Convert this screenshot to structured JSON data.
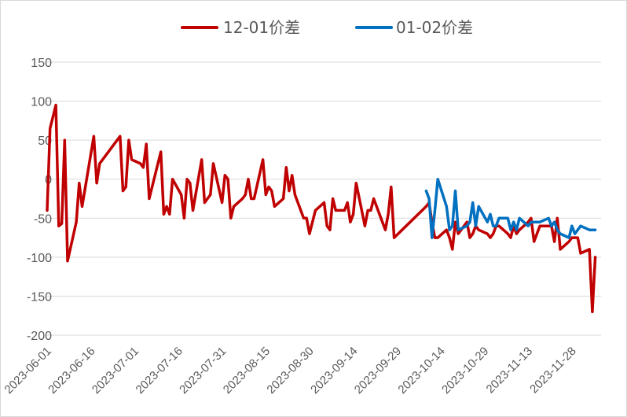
{
  "chart_data": {
    "type": "line",
    "title": "",
    "xlabel": "",
    "ylabel": "",
    "ylim": [
      -200,
      150
    ],
    "yticks": [
      150,
      100,
      50,
      0,
      -50,
      -100,
      -150,
      -200
    ],
    "xlim": [
      "2023-06-01",
      "2023-12-08"
    ],
    "xticks": [
      "2023-06-01",
      "2023-06-16",
      "2023-07-01",
      "2023-07-16",
      "2023-07-31",
      "2023-08-15",
      "2023-08-30",
      "2023-09-14",
      "2023-09-29",
      "2023-10-14",
      "2023-10-29",
      "2023-11-13",
      "2023-11-28"
    ],
    "grid": "horizontal",
    "legend_position": "top",
    "series": [
      {
        "name": "12-01价差",
        "color": "#c00000",
        "points": [
          [
            "2023-06-01",
            -40
          ],
          [
            "2023-06-02",
            65
          ],
          [
            "2023-06-04",
            95
          ],
          [
            "2023-06-05",
            -60
          ],
          [
            "2023-06-06",
            -57
          ],
          [
            "2023-06-07",
            50
          ],
          [
            "2023-06-08",
            -105
          ],
          [
            "2023-06-11",
            -55
          ],
          [
            "2023-06-12",
            -5
          ],
          [
            "2023-06-13",
            -35
          ],
          [
            "2023-06-17",
            55
          ],
          [
            "2023-06-18",
            -5
          ],
          [
            "2023-06-19",
            20
          ],
          [
            "2023-06-26",
            55
          ],
          [
            "2023-06-27",
            -15
          ],
          [
            "2023-06-28",
            -10
          ],
          [
            "2023-06-29",
            50
          ],
          [
            "2023-06-30",
            25
          ],
          [
            "2023-07-03",
            20
          ],
          [
            "2023-07-04",
            15
          ],
          [
            "2023-07-05",
            45
          ],
          [
            "2023-07-06",
            -25
          ],
          [
            "2023-07-10",
            35
          ],
          [
            "2023-07-11",
            -45
          ],
          [
            "2023-07-12",
            -35
          ],
          [
            "2023-07-13",
            -45
          ],
          [
            "2023-07-14",
            0
          ],
          [
            "2023-07-17",
            -20
          ],
          [
            "2023-07-18",
            -50
          ],
          [
            "2023-07-19",
            0
          ],
          [
            "2023-07-20",
            -5
          ],
          [
            "2023-07-21",
            -40
          ],
          [
            "2023-07-24",
            25
          ],
          [
            "2023-07-25",
            -30
          ],
          [
            "2023-07-26",
            -25
          ],
          [
            "2023-07-27",
            -20
          ],
          [
            "2023-07-28",
            20
          ],
          [
            "2023-07-31",
            -30
          ],
          [
            "2023-08-01",
            5
          ],
          [
            "2023-08-02",
            0
          ],
          [
            "2023-08-03",
            -50
          ],
          [
            "2023-08-04",
            -35
          ],
          [
            "2023-08-07",
            -25
          ],
          [
            "2023-08-08",
            -20
          ],
          [
            "2023-08-09",
            0
          ],
          [
            "2023-08-10",
            -25
          ],
          [
            "2023-08-11",
            -25
          ],
          [
            "2023-08-14",
            25
          ],
          [
            "2023-08-15",
            -20
          ],
          [
            "2023-08-16",
            -10
          ],
          [
            "2023-08-17",
            -15
          ],
          [
            "2023-08-18",
            -35
          ],
          [
            "2023-08-21",
            -25
          ],
          [
            "2023-08-22",
            15
          ],
          [
            "2023-08-23",
            -15
          ],
          [
            "2023-08-24",
            5
          ],
          [
            "2023-08-25",
            -20
          ],
          [
            "2023-08-28",
            -50
          ],
          [
            "2023-08-29",
            -50
          ],
          [
            "2023-08-30",
            -70
          ],
          [
            "2023-08-31",
            -55
          ],
          [
            "2023-09-01",
            -40
          ],
          [
            "2023-09-04",
            -30
          ],
          [
            "2023-09-05",
            -60
          ],
          [
            "2023-09-06",
            -65
          ],
          [
            "2023-09-07",
            -25
          ],
          [
            "2023-09-08",
            -40
          ],
          [
            "2023-09-11",
            -40
          ],
          [
            "2023-09-12",
            -30
          ],
          [
            "2023-09-13",
            -55
          ],
          [
            "2023-09-14",
            -45
          ],
          [
            "2023-09-15",
            -5
          ],
          [
            "2023-09-18",
            -60
          ],
          [
            "2023-09-19",
            -40
          ],
          [
            "2023-09-20",
            -40
          ],
          [
            "2023-09-21",
            -25
          ],
          [
            "2023-09-22",
            -35
          ],
          [
            "2023-09-25",
            -65
          ],
          [
            "2023-09-26",
            -45
          ],
          [
            "2023-09-27",
            -10
          ],
          [
            "2023-09-28",
            -75
          ],
          [
            "2023-10-09",
            -35
          ],
          [
            "2023-10-10",
            -30
          ],
          [
            "2023-10-11",
            -55
          ],
          [
            "2023-10-12",
            -75
          ],
          [
            "2023-10-13",
            -75
          ],
          [
            "2023-10-16",
            -65
          ],
          [
            "2023-10-17",
            -75
          ],
          [
            "2023-10-18",
            -90
          ],
          [
            "2023-10-19",
            -55
          ],
          [
            "2023-10-20",
            -70
          ],
          [
            "2023-10-23",
            -55
          ],
          [
            "2023-10-24",
            -75
          ],
          [
            "2023-10-25",
            -70
          ],
          [
            "2023-10-26",
            -60
          ],
          [
            "2023-10-27",
            -65
          ],
          [
            "2023-10-30",
            -70
          ],
          [
            "2023-10-31",
            -75
          ],
          [
            "2023-11-01",
            -70
          ],
          [
            "2023-11-02",
            -60
          ],
          [
            "2023-11-03",
            -60
          ],
          [
            "2023-11-06",
            -70
          ],
          [
            "2023-11-07",
            -75
          ],
          [
            "2023-11-08",
            -60
          ],
          [
            "2023-11-09",
            -70
          ],
          [
            "2023-11-10",
            -65
          ],
          [
            "2023-11-13",
            -55
          ],
          [
            "2023-11-14",
            -50
          ],
          [
            "2023-11-15",
            -80
          ],
          [
            "2023-11-16",
            -70
          ],
          [
            "2023-11-17",
            -60
          ],
          [
            "2023-11-20",
            -60
          ],
          [
            "2023-11-21",
            -60
          ],
          [
            "2023-11-22",
            -80
          ],
          [
            "2023-11-23",
            -50
          ],
          [
            "2023-11-24",
            -90
          ],
          [
            "2023-11-27",
            -80
          ],
          [
            "2023-11-28",
            -75
          ],
          [
            "2023-11-29",
            -75
          ],
          [
            "2023-11-30",
            -75
          ],
          [
            "2023-12-01",
            -95
          ],
          [
            "2023-12-04",
            -90
          ],
          [
            "2023-12-05",
            -170
          ],
          [
            "2023-12-06",
            -100
          ]
        ]
      },
      {
        "name": "01-02价差",
        "color": "#0070c0",
        "points": [
          [
            "2023-10-09",
            -15
          ],
          [
            "2023-10-10",
            -25
          ],
          [
            "2023-10-11",
            -75
          ],
          [
            "2023-10-12",
            -40
          ],
          [
            "2023-10-13",
            0
          ],
          [
            "2023-10-16",
            -35
          ],
          [
            "2023-10-17",
            -65
          ],
          [
            "2023-10-18",
            -60
          ],
          [
            "2023-10-19",
            -15
          ],
          [
            "2023-10-20",
            -65
          ],
          [
            "2023-10-23",
            -60
          ],
          [
            "2023-10-24",
            -55
          ],
          [
            "2023-10-25",
            -30
          ],
          [
            "2023-10-26",
            -60
          ],
          [
            "2023-10-27",
            -35
          ],
          [
            "2023-10-30",
            -55
          ],
          [
            "2023-10-31",
            -45
          ],
          [
            "2023-11-01",
            -60
          ],
          [
            "2023-11-02",
            -60
          ],
          [
            "2023-11-03",
            -50
          ],
          [
            "2023-11-06",
            -50
          ],
          [
            "2023-11-07",
            -65
          ],
          [
            "2023-11-08",
            -55
          ],
          [
            "2023-11-09",
            -65
          ],
          [
            "2023-11-10",
            -50
          ],
          [
            "2023-11-13",
            -60
          ],
          [
            "2023-11-14",
            -55
          ],
          [
            "2023-11-15",
            -55
          ],
          [
            "2023-11-16",
            -55
          ],
          [
            "2023-11-17",
            -55
          ],
          [
            "2023-11-20",
            -50
          ],
          [
            "2023-11-21",
            -60
          ],
          [
            "2023-11-22",
            -55
          ],
          [
            "2023-11-23",
            -65
          ],
          [
            "2023-11-24",
            -70
          ],
          [
            "2023-11-27",
            -75
          ],
          [
            "2023-11-28",
            -60
          ],
          [
            "2023-11-29",
            -70
          ],
          [
            "2023-11-30",
            -65
          ],
          [
            "2023-12-01",
            -60
          ],
          [
            "2023-12-04",
            -65
          ],
          [
            "2023-12-05",
            -65
          ],
          [
            "2023-12-06",
            -65
          ]
        ]
      }
    ]
  }
}
